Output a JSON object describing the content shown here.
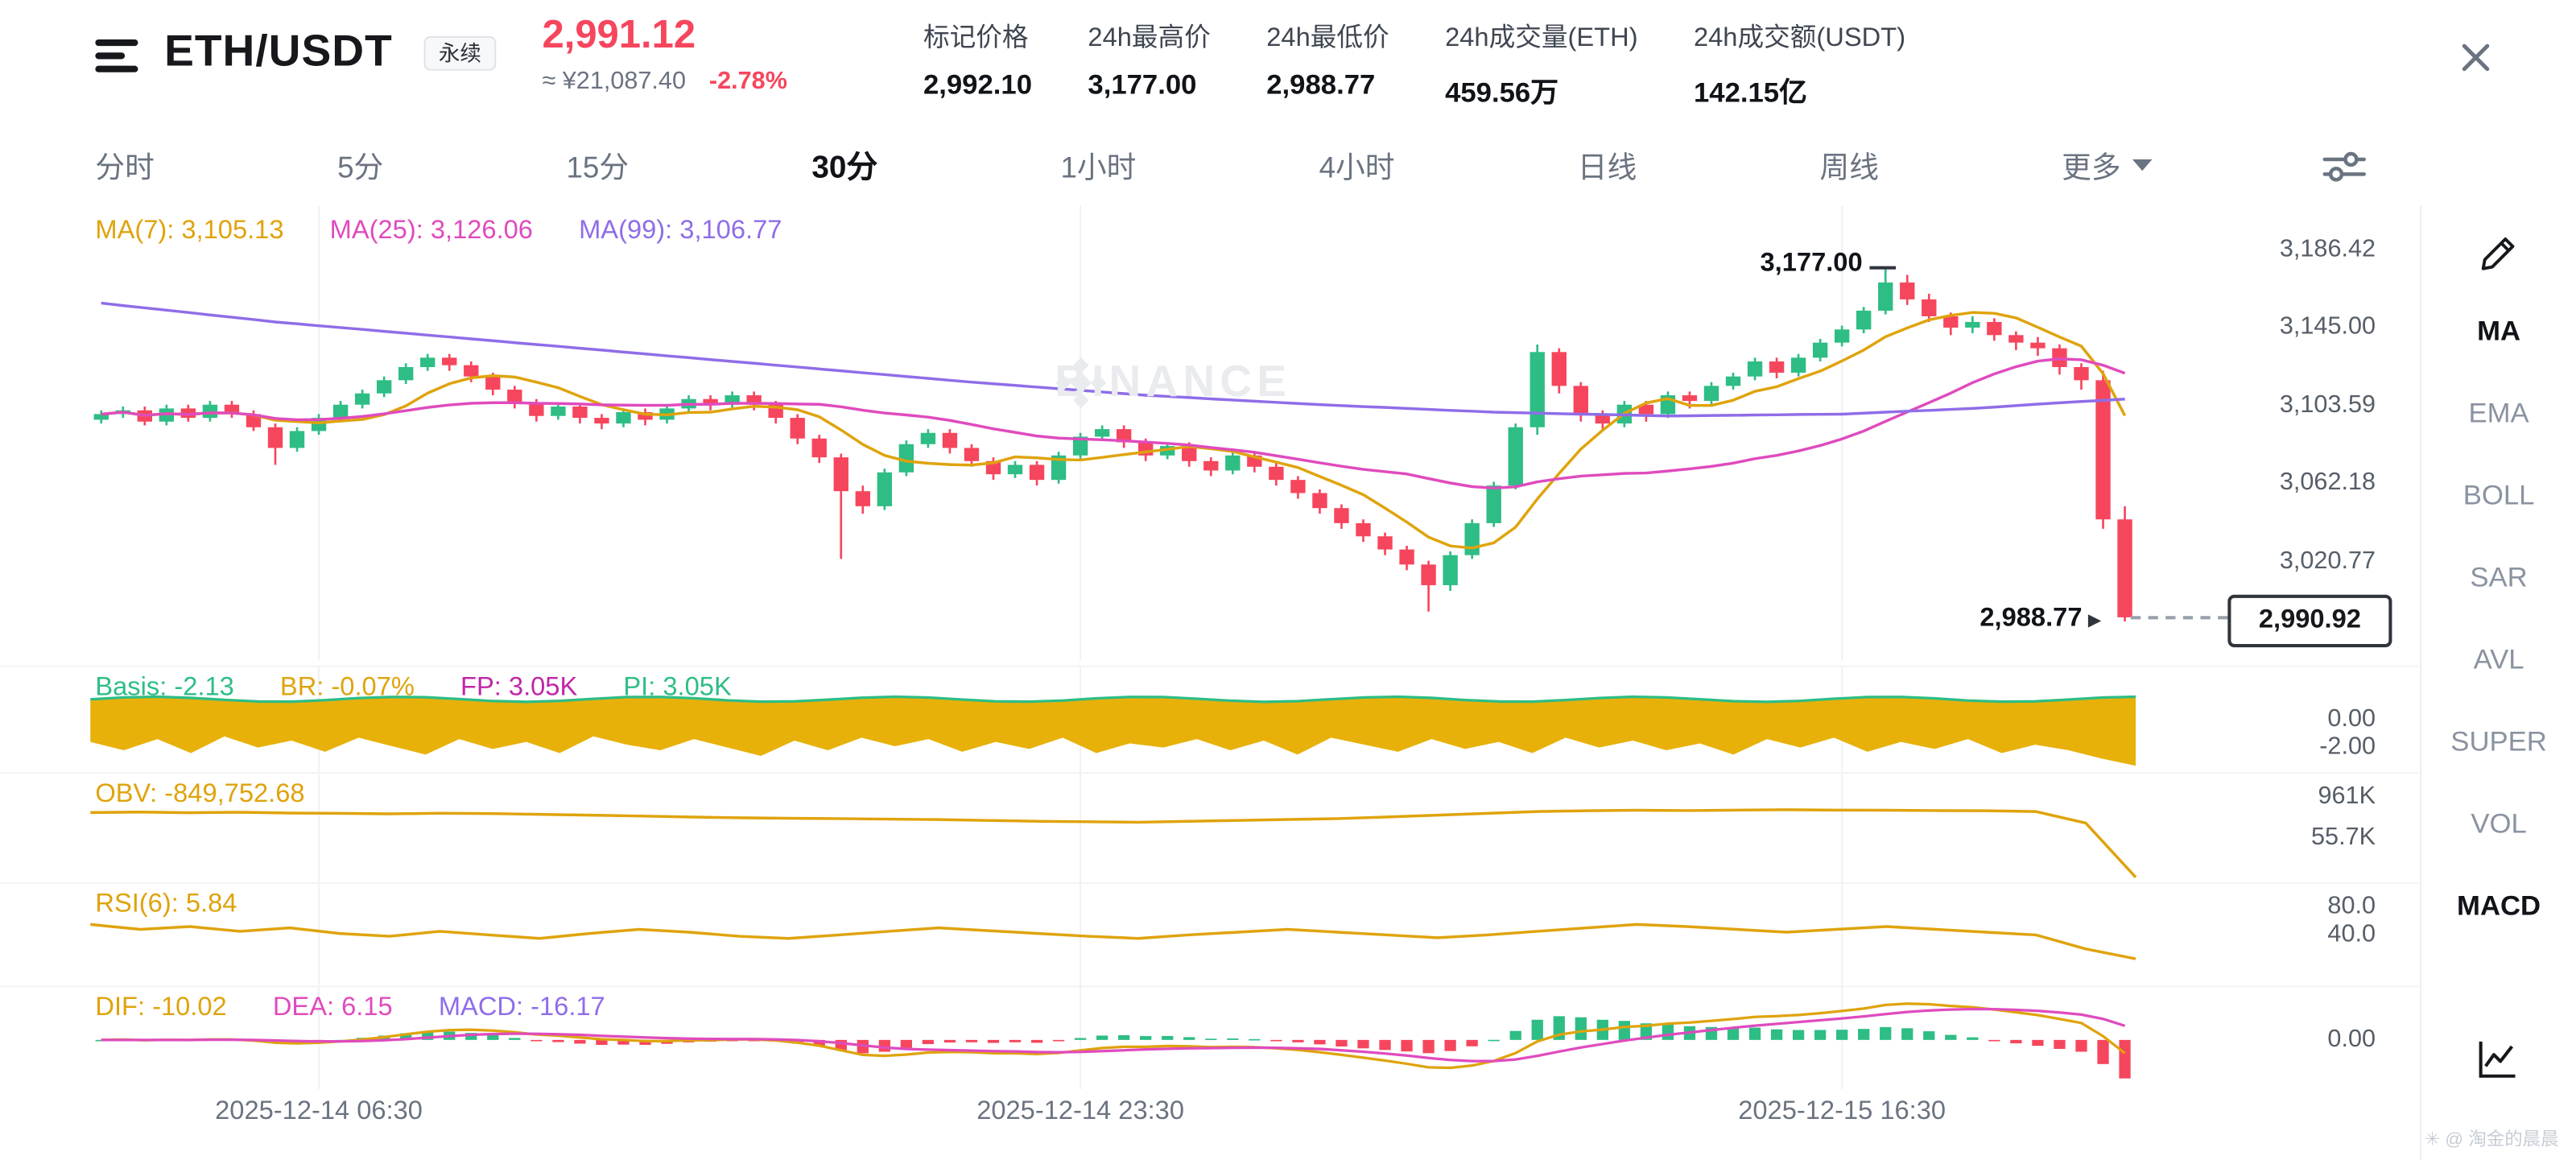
{
  "header": {
    "symbol": "ETH/USDT",
    "contract_badge": "永续",
    "last_price": "2,991.12",
    "approx_cny": "≈ ¥21,087.40",
    "change_pct": "-2.78%",
    "stats": [
      {
        "label": "标记价格",
        "value": "2,992.10"
      },
      {
        "label": "24h最高价",
        "value": "3,177.00"
      },
      {
        "label": "24h最低价",
        "value": "2,988.77"
      },
      {
        "label": "24h成交量(ETH)",
        "value": "459.56万"
      },
      {
        "label": "24h成交额(USDT)",
        "value": "142.15亿"
      }
    ]
  },
  "toolbar": {
    "items": [
      "分时",
      "5分",
      "15分",
      "30分",
      "1小时",
      "4小时",
      "日线",
      "周线"
    ],
    "selected": "30分",
    "more_label": "更多"
  },
  "sidebar": {
    "items": [
      "MA",
      "EMA",
      "BOLL",
      "SAR",
      "AVL",
      "SUPER",
      "VOL",
      "MACD"
    ],
    "selected": [
      "MA",
      "MACD"
    ]
  },
  "watermark": {
    "brand": "BINANCE"
  },
  "footer": {
    "credit": "✳ @ 淘金的晨晨"
  },
  "legends": {
    "main": [
      {
        "text": "MA(7): 3,105.13",
        "color": "#dfa30c"
      },
      {
        "text": "MA(25): 3,126.06",
        "color": "#df4bbe"
      },
      {
        "text": "MA(99): 3,106.77",
        "color": "#8f6de8"
      }
    ],
    "basis": [
      {
        "text": "Basis: -2.13",
        "color": "#2ebd85"
      },
      {
        "text": "BR: -0.07%",
        "color": "#dfa30c"
      },
      {
        "text": "FP: 3.05K",
        "color": "#c026a8"
      },
      {
        "text": "PI: 3.05K",
        "color": "#2ebd85"
      }
    ],
    "obv": [
      {
        "text": "OBV: -849,752.68",
        "color": "#dfa30c"
      }
    ],
    "rsi": [
      {
        "text": "RSI(6): 5.84",
        "color": "#dfa30c"
      }
    ],
    "macd": [
      {
        "text": "DIF: -10.02",
        "color": "#dfa30c"
      },
      {
        "text": "DEA: 6.15",
        "color": "#df4bbe"
      },
      {
        "text": "MACD: -16.17",
        "color": "#8f6de8"
      }
    ]
  },
  "colors": {
    "up": "#2ebd85",
    "down": "#f6465d",
    "ma7": "#dfa30c",
    "ma25": "#df4bbe",
    "ma99": "#8f6de8",
    "band": "#e7b10a",
    "grid": "#f0f1f3",
    "axis_text": "#565e68"
  },
  "chart_data": {
    "type": "candlestick",
    "symbol": "ETH/USDT",
    "interval": "30分",
    "y_range": [
      3210,
      2968
    ],
    "y_ticks": [
      {
        "text": "3,186.42",
        "v": 3186.42
      },
      {
        "text": "3,145.00",
        "v": 3145.0
      },
      {
        "text": "3,103.59",
        "v": 3103.59
      },
      {
        "text": "3,062.18",
        "v": 3062.18
      },
      {
        "text": "3,020.77",
        "v": 3020.77
      }
    ],
    "x_labels": [
      "2025-12-14 06:30",
      "2025-12-14 23:30",
      "2025-12-15 16:30"
    ],
    "x_label_indices": [
      10,
      45,
      80
    ],
    "candles": [
      [
        3096,
        3101,
        3094,
        3099
      ],
      [
        3099,
        3103,
        3097,
        3101
      ],
      [
        3101,
        3103,
        3093,
        3095
      ],
      [
        3095,
        3104,
        3093,
        3102
      ],
      [
        3102,
        3104,
        3095,
        3097
      ],
      [
        3097,
        3106,
        3095,
        3104
      ],
      [
        3104,
        3106,
        3097,
        3099
      ],
      [
        3099,
        3101,
        3090,
        3092
      ],
      [
        3092,
        3094,
        3072,
        3081
      ],
      [
        3081,
        3092,
        3079,
        3090
      ],
      [
        3090,
        3099,
        3088,
        3097
      ],
      [
        3097,
        3106,
        3095,
        3104
      ],
      [
        3104,
        3112,
        3102,
        3110
      ],
      [
        3110,
        3119,
        3108,
        3117
      ],
      [
        3117,
        3126,
        3115,
        3124
      ],
      [
        3124,
        3131,
        3122,
        3129
      ],
      [
        3129,
        3131,
        3122,
        3125
      ],
      [
        3125,
        3127,
        3116,
        3119
      ],
      [
        3119,
        3121,
        3109,
        3112
      ],
      [
        3112,
        3114,
        3102,
        3105
      ],
      [
        3105,
        3107,
        3095,
        3098
      ],
      [
        3098,
        3105,
        3096,
        3103
      ],
      [
        3103,
        3105,
        3094,
        3097
      ],
      [
        3097,
        3099,
        3091,
        3094
      ],
      [
        3094,
        3102,
        3092,
        3100
      ],
      [
        3100,
        3102,
        3093,
        3096
      ],
      [
        3096,
        3104,
        3094,
        3102
      ],
      [
        3102,
        3109,
        3100,
        3107
      ],
      [
        3107,
        3109,
        3101,
        3104
      ],
      [
        3104,
        3111,
        3102,
        3109
      ],
      [
        3109,
        3111,
        3101,
        3104
      ],
      [
        3104,
        3106,
        3094,
        3097
      ],
      [
        3097,
        3099,
        3083,
        3086
      ],
      [
        3086,
        3088,
        3073,
        3076
      ],
      [
        3076,
        3078,
        3022,
        3058
      ],
      [
        3058,
        3061,
        3046,
        3050
      ],
      [
        3050,
        3070,
        3048,
        3068
      ],
      [
        3068,
        3085,
        3066,
        3083
      ],
      [
        3083,
        3091,
        3081,
        3089
      ],
      [
        3089,
        3091,
        3078,
        3081
      ],
      [
        3081,
        3083,
        3071,
        3074
      ],
      [
        3074,
        3076,
        3064,
        3067
      ],
      [
        3067,
        3074,
        3065,
        3072
      ],
      [
        3072,
        3074,
        3061,
        3064
      ],
      [
        3064,
        3079,
        3062,
        3077
      ],
      [
        3077,
        3089,
        3075,
        3087
      ],
      [
        3087,
        3093,
        3085,
        3091
      ],
      [
        3091,
        3093,
        3081,
        3084
      ],
      [
        3084,
        3086,
        3074,
        3077
      ],
      [
        3077,
        3084,
        3075,
        3082
      ],
      [
        3082,
        3084,
        3071,
        3074
      ],
      [
        3074,
        3076,
        3066,
        3069
      ],
      [
        3069,
        3079,
        3067,
        3077
      ],
      [
        3077,
        3079,
        3068,
        3071
      ],
      [
        3071,
        3073,
        3061,
        3064
      ],
      [
        3064,
        3066,
        3054,
        3057
      ],
      [
        3057,
        3059,
        3046,
        3049
      ],
      [
        3049,
        3051,
        3038,
        3041
      ],
      [
        3041,
        3043,
        3031,
        3034
      ],
      [
        3034,
        3036,
        3024,
        3027
      ],
      [
        3027,
        3029,
        3016,
        3019
      ],
      [
        3019,
        3021,
        2994,
        3008
      ],
      [
        3008,
        3026,
        3005,
        3024
      ],
      [
        3024,
        3043,
        3022,
        3041
      ],
      [
        3041,
        3063,
        3039,
        3061
      ],
      [
        3061,
        3094,
        3059,
        3092
      ],
      [
        3092,
        3136,
        3088,
        3132
      ],
      [
        3132,
        3134,
        3110,
        3114
      ],
      [
        3114,
        3116,
        3095,
        3099
      ],
      [
        3099,
        3101,
        3090,
        3094
      ],
      [
        3094,
        3106,
        3092,
        3104
      ],
      [
        3104,
        3106,
        3095,
        3099
      ],
      [
        3099,
        3111,
        3097,
        3109
      ],
      [
        3109,
        3111,
        3102,
        3106
      ],
      [
        3106,
        3116,
        3104,
        3114
      ],
      [
        3114,
        3121,
        3112,
        3119
      ],
      [
        3119,
        3129,
        3117,
        3127
      ],
      [
        3127,
        3129,
        3118,
        3121
      ],
      [
        3121,
        3131,
        3119,
        3129
      ],
      [
        3129,
        3139,
        3127,
        3137
      ],
      [
        3137,
        3146,
        3135,
        3144
      ],
      [
        3144,
        3156,
        3142,
        3154
      ],
      [
        3154,
        3177,
        3152,
        3169
      ],
      [
        3169,
        3173,
        3157,
        3160
      ],
      [
        3160,
        3163,
        3148,
        3151
      ],
      [
        3151,
        3153,
        3141,
        3145
      ],
      [
        3145,
        3151,
        3142,
        3148
      ],
      [
        3148,
        3150,
        3138,
        3141
      ],
      [
        3141,
        3143,
        3133,
        3137
      ],
      [
        3137,
        3140,
        3130,
        3134
      ],
      [
        3134,
        3136,
        3120,
        3124
      ],
      [
        3124,
        3126,
        3112,
        3117
      ],
      [
        3117,
        3122,
        3038,
        3043
      ],
      [
        3043,
        3050,
        2988.77,
        2990.92
      ]
    ],
    "ma99_points": [
      [
        0,
        3158
      ],
      [
        8,
        3148
      ],
      [
        16,
        3140
      ],
      [
        24,
        3132
      ],
      [
        32,
        3124
      ],
      [
        40,
        3116
      ],
      [
        48,
        3109
      ],
      [
        56,
        3104
      ],
      [
        64,
        3100
      ],
      [
        72,
        3098
      ],
      [
        80,
        3099
      ],
      [
        86,
        3102
      ],
      [
        90,
        3105
      ],
      [
        93,
        3107
      ]
    ],
    "annotations": {
      "high": {
        "index": 82,
        "price": 3177.0,
        "label": "3,177.00"
      },
      "low": {
        "index": 93,
        "price": 2988.77,
        "label": "2,988.77"
      },
      "last": {
        "price": 2990.92,
        "label": "2,990.92"
      }
    },
    "sub_panels": {
      "basis": {
        "range": [
          3.76,
          -3.88
        ],
        "ticks": [
          {
            "text": "0.00",
            "v": 0
          },
          {
            "text": "-2.00",
            "v": -2
          }
        ],
        "band_top": 1.45,
        "band_bottom": [
          -1.6,
          -2.2,
          -1.4,
          -2.4,
          -1.2,
          -2.0,
          -1.5,
          -2.3,
          -1.3,
          -1.9,
          -2.5,
          -1.4,
          -2.1,
          -1.6,
          -2.4,
          -1.2,
          -1.8,
          -2.2,
          -1.4,
          -2.0,
          -2.6,
          -1.5,
          -2.2,
          -1.3,
          -1.9,
          -1.4,
          -2.3,
          -1.6,
          -2.1,
          -1.3,
          -2.4,
          -1.7,
          -2.0,
          -1.4,
          -2.2,
          -1.5,
          -2.5,
          -1.3,
          -1.8,
          -2.3,
          -1.4,
          -2.1,
          -1.6,
          -2.4,
          -1.3,
          -2.0,
          -1.5,
          -2.2,
          -1.7,
          -2.5,
          -1.4,
          -2.0,
          -1.3,
          -2.3,
          -1.6,
          -2.1,
          -1.4,
          -2.4,
          -1.8,
          -2.2,
          -2.8,
          -3.3
        ]
      },
      "obv": {
        "range": [
          1500,
          -1000
        ],
        "ticks": [
          {
            "text": "961K",
            "v": 961
          },
          {
            "text": "55.7K",
            "v": 55.7
          }
        ],
        "values": [
          620,
          632,
          615,
          626,
          610,
          600,
          590,
          606,
          596,
          580,
          560,
          540,
          520,
          500,
          490,
          480,
          470,
          460,
          440,
          420,
          410,
          400,
          422,
          442,
          462,
          482,
          520,
          560,
          600,
          640,
          660,
          672,
          665,
          676,
          682,
          676,
          670,
          665,
          660,
          640,
          380,
          -849.75
        ]
      },
      "rsi": {
        "range": [
          113,
          -35
        ],
        "ticks": [
          {
            "text": "80.0",
            "v": 80
          },
          {
            "text": "40.0",
            "v": 40
          }
        ],
        "values": [
          55,
          48,
          52,
          45,
          50,
          42,
          38,
          45,
          40,
          35,
          42,
          48,
          44,
          38,
          35,
          40,
          45,
          50,
          46,
          42,
          38,
          35,
          40,
          44,
          48,
          44,
          40,
          36,
          40,
          45,
          50,
          55,
          52,
          48,
          44,
          48,
          52,
          48,
          44,
          40,
          20,
          5.84
        ]
      },
      "macd": {
        "range": [
          32,
          -30
        ],
        "ticks": [
          {
            "text": "0.00",
            "v": 0
          }
        ]
      }
    }
  }
}
